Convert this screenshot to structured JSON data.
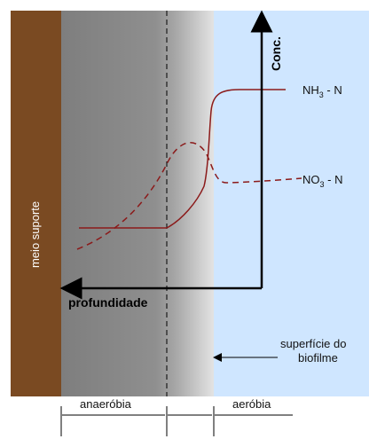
{
  "diagram": {
    "axis_labels": {
      "concentration": "Conc.",
      "depth": "profundidade"
    },
    "regions": {
      "support": "meio suporte",
      "surface": "superfície do",
      "surface_line2": "biofilme",
      "anaerobic": "anaeróbia",
      "aerobic": "aeróbia"
    },
    "curves": {
      "ammonia": {
        "base": "NH",
        "sub": "3",
        "rest": " - N",
        "color": "#8b1a1a",
        "style": "solid"
      },
      "nitrate": {
        "base": "NO",
        "sub": "3",
        "rest": " - N",
        "color": "#8b1a1a",
        "style": "dashed"
      }
    },
    "colors": {
      "support": "#7a4a22",
      "anaerobic_zone": "#8a8a8a",
      "aerobic_zone": "#cfe6ff",
      "axes": "#000000"
    }
  }
}
